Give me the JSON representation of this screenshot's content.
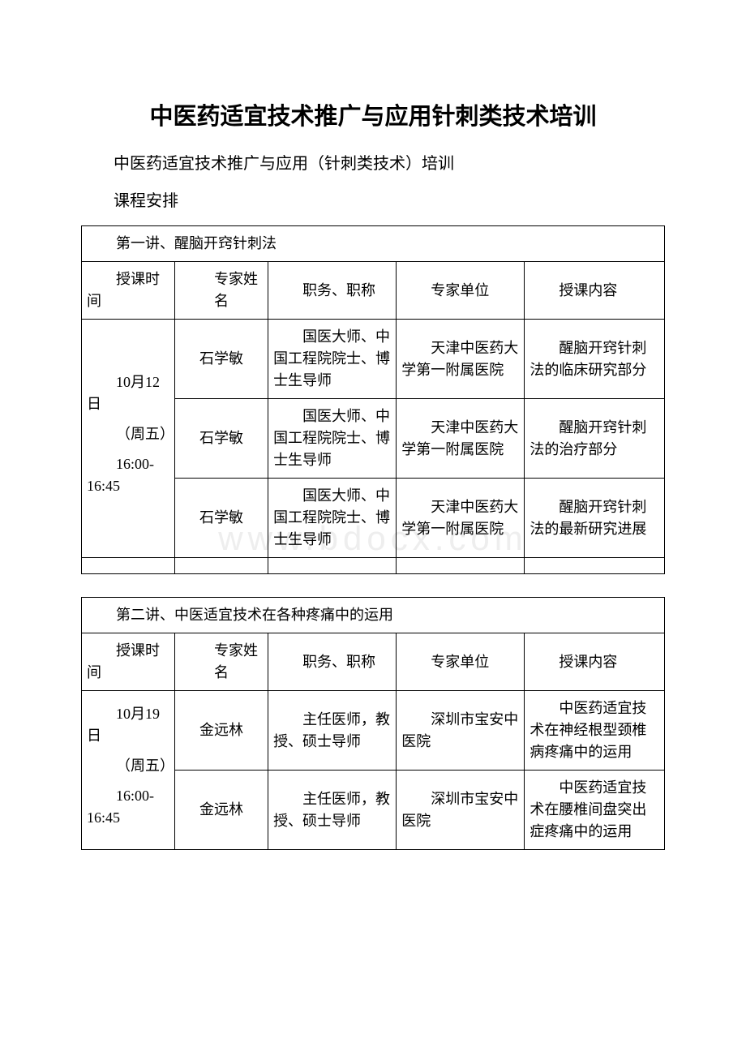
{
  "watermark": "www.bdocx.com",
  "title": "中医药适宜技术推广与应用针刺类技术培训",
  "subtitle": "中医药适宜技术推广与应用（针刺类技术）培训",
  "schedule_label": "课程安排",
  "headers": {
    "time": "授课时间",
    "name": "专家姓名",
    "job": "职务、职称",
    "unit": "专家单位",
    "content": "授课内容"
  },
  "lectures": [
    {
      "lecture_title": "第一讲、醒脑开窍针刺法",
      "time": "10月12日\n（周五）\n16:00-16:45",
      "rows": [
        {
          "name": "石学敏",
          "job": "国医大师、中国工程院院士、博士生导师",
          "unit": "天津中医药大学第一附属医院",
          "content": "醒脑开窍针刺法的临床研究部分"
        },
        {
          "name": "石学敏",
          "job": "国医大师、中国工程院院士、博士生导师",
          "unit": "天津中医药大学第一附属医院",
          "content": "醒脑开窍针刺法的治疗部分"
        },
        {
          "name": "石学敏",
          "job": "国医大师、中国工程院院士、博士生导师",
          "unit": "天津中医药大学第一附属医院",
          "content": "醒脑开窍针刺法的最新研究进展"
        }
      ],
      "has_empty_row": true
    },
    {
      "lecture_title": "第二讲、中医适宜技术在各种疼痛中的运用",
      "time": "10月19日\n（周五）\n16:00-16:45",
      "rows": [
        {
          "name": "金远林",
          "job": "主任医师，教授、硕士导师",
          "unit": "深圳市宝安中医院",
          "content": "中医药适宜技术在神经根型颈椎病疼痛中的运用"
        },
        {
          "name": "金远林",
          "job": "主任医师，教授、硕士导师",
          "unit": "深圳市宝安中医院",
          "content": "中医药适宜技术在腰椎间盘突出症疼痛中的运用"
        }
      ],
      "has_empty_row": false
    }
  ]
}
